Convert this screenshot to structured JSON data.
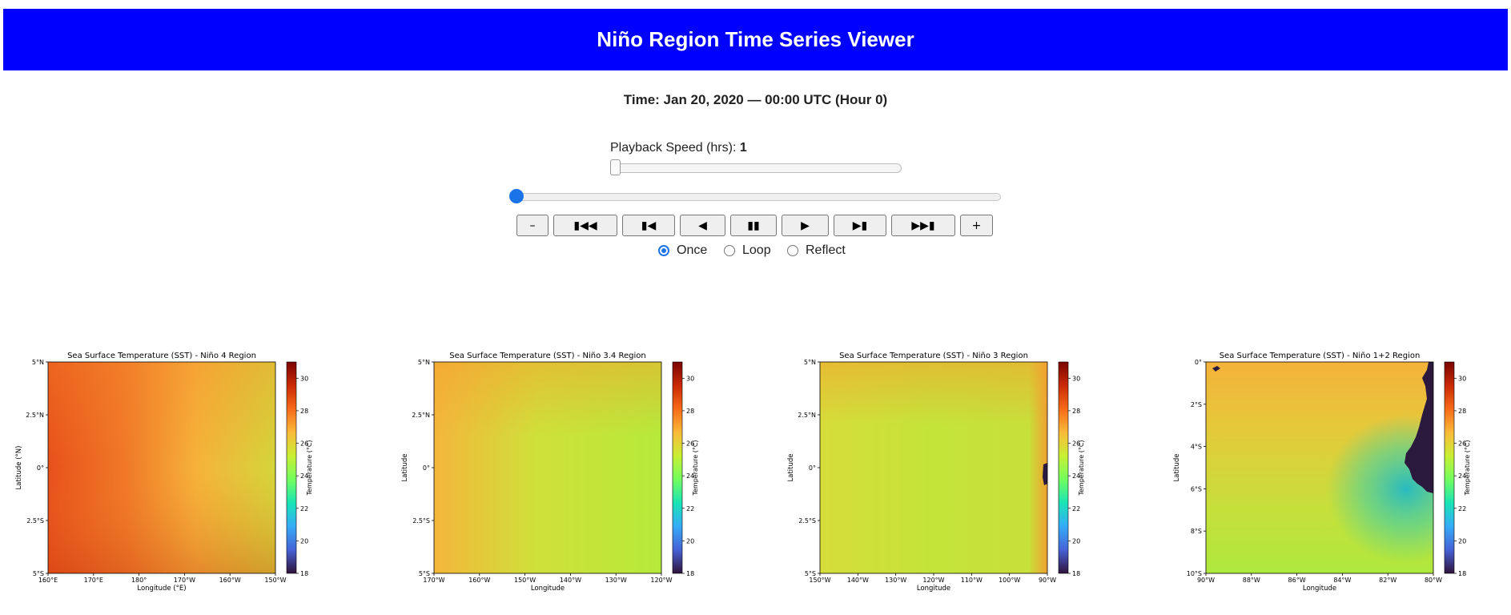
{
  "header": {
    "title": "Niño Region Time Series Viewer"
  },
  "time": {
    "label": "Time: Jan 20, 2020 — 00:00 UTC (Hour 0)"
  },
  "speed": {
    "label": "Playback Speed (hrs): ",
    "value": "1",
    "fraction": 0.0
  },
  "timeline": {
    "fraction": 0.0
  },
  "controls": {
    "minus": "–",
    "first": "▮◀◀",
    "prev": "▮◀",
    "reverse": "◀",
    "pause": "▮▮",
    "play": "▶",
    "next": "▶▮",
    "last": "▶▶▮",
    "plus": "+"
  },
  "mode": {
    "options": [
      "Once",
      "Loop",
      "Reflect"
    ],
    "selected": "Once"
  },
  "colors": {
    "header": "#0000ff",
    "accent": "#1a73e8",
    "land": "#2b1a3d"
  },
  "colorbar": {
    "label": "Temperature (°C)",
    "ticks": [
      "18",
      "20",
      "22",
      "24",
      "26",
      "28",
      "30"
    ],
    "range": [
      18,
      31
    ]
  },
  "chart_data": [
    {
      "type": "heatmap",
      "title": "Sea Surface Temperature (SST) - Niño 4 Region",
      "xlabel": "Longitude (°E)",
      "ylabel": "Latitude (°N)",
      "xticks": [
        "160°E",
        "170°E",
        "180°",
        "170°W",
        "160°W",
        "150°W"
      ],
      "yticks": [
        "5°N",
        "2.5°N",
        "0°",
        "2.5°S",
        "5°S"
      ],
      "temperature_range_c": [
        26,
        30
      ],
      "colorbar_ticks": [
        "18",
        "20",
        "22",
        "24",
        "26",
        "28",
        "30"
      ],
      "colorbar_label": "Temperature (°C)"
    },
    {
      "type": "heatmap",
      "title": "Sea Surface Temperature (SST) - Niño 3.4 Region",
      "xlabel": "Longitude",
      "ylabel": "Latitude",
      "xticks": [
        "170°W",
        "160°W",
        "150°W",
        "140°W",
        "130°W",
        "120°W"
      ],
      "yticks": [
        "5°N",
        "2.5°N",
        "0°",
        "2.5°S",
        "5°S"
      ],
      "temperature_range_c": [
        25,
        27.5
      ],
      "colorbar_ticks": [
        "18",
        "20",
        "22",
        "24",
        "26",
        "28",
        "30"
      ],
      "colorbar_label": "Temperature (°C)"
    },
    {
      "type": "heatmap",
      "title": "Sea Surface Temperature (SST) - Niño 3 Region",
      "xlabel": "Longitude",
      "ylabel": "Latitude",
      "xticks": [
        "150°W",
        "140°W",
        "130°W",
        "120°W",
        "110°W",
        "100°W",
        "90°W"
      ],
      "yticks": [
        "5°N",
        "2.5°N",
        "0°",
        "2.5°S",
        "5°S"
      ],
      "temperature_range_c": [
        25,
        27
      ],
      "colorbar_ticks": [
        "18",
        "20",
        "22",
        "24",
        "26",
        "28",
        "30"
      ],
      "colorbar_label": "Temperature (°C)"
    },
    {
      "type": "heatmap",
      "title": "Sea Surface Temperature (SST) - Niño 1+2 Region",
      "xlabel": "Longitude",
      "ylabel": "Latitude",
      "xticks": [
        "90°W",
        "88°W",
        "86°W",
        "84°W",
        "82°W",
        "80°W"
      ],
      "yticks": [
        "0°",
        "2°S",
        "4°S",
        "6°S",
        "8°S",
        "10°S"
      ],
      "temperature_range_c": [
        21,
        27
      ],
      "colorbar_ticks": [
        "18",
        "20",
        "22",
        "24",
        "26",
        "28",
        "30"
      ],
      "colorbar_label": "Temperature (°C)"
    }
  ]
}
